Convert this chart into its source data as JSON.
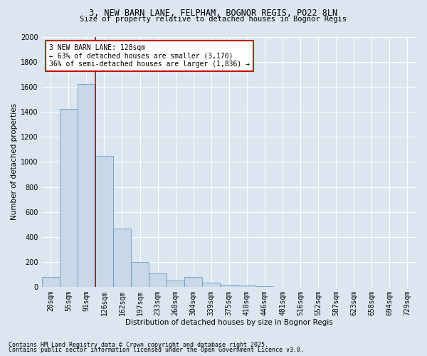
{
  "title1": "3, NEW BARN LANE, FELPHAM, BOGNOR REGIS, PO22 8LN",
  "title2": "Size of property relative to detached houses in Bognor Regis",
  "xlabel": "Distribution of detached houses by size in Bognor Regis",
  "ylabel": "Number of detached properties",
  "categories": [
    "20sqm",
    "55sqm",
    "91sqm",
    "126sqm",
    "162sqm",
    "197sqm",
    "233sqm",
    "268sqm",
    "304sqm",
    "339sqm",
    "375sqm",
    "410sqm",
    "446sqm",
    "481sqm",
    "516sqm",
    "552sqm",
    "587sqm",
    "623sqm",
    "658sqm",
    "694sqm",
    "729sqm"
  ],
  "values": [
    80,
    1420,
    1620,
    1050,
    470,
    200,
    110,
    50,
    80,
    35,
    20,
    10,
    5,
    2,
    1,
    0,
    0,
    0,
    0,
    0,
    0
  ],
  "bar_color": "#c8d8e8",
  "bar_edge_color": "#5b8db8",
  "vline_x_idx": 3,
  "vline_color": "#cc0000",
  "ylim": [
    0,
    2000
  ],
  "yticks": [
    0,
    200,
    400,
    600,
    800,
    1000,
    1200,
    1400,
    1600,
    1800,
    2000
  ],
  "annotation_text": "3 NEW BARN LANE: 128sqm\n← 63% of detached houses are smaller (3,170)\n36% of semi-detached houses are larger (1,836) →",
  "annotation_box_color": "#ffffff",
  "annotation_edge_color": "#cc0000",
  "footnote1": "Contains HM Land Registry data © Crown copyright and database right 2025.",
  "footnote2": "Contains public sector information licensed under the Open Government Licence v3.0.",
  "background_color": "#dce6f0",
  "plot_bg_color": "#dce6f0",
  "grid_color": "#ffffff",
  "title1_fontsize": 8.5,
  "title2_fontsize": 7.5,
  "xlabel_fontsize": 7.5,
  "ylabel_fontsize": 7.5,
  "tick_fontsize": 7,
  "footnote_fontsize": 6,
  "annot_fontsize": 7
}
